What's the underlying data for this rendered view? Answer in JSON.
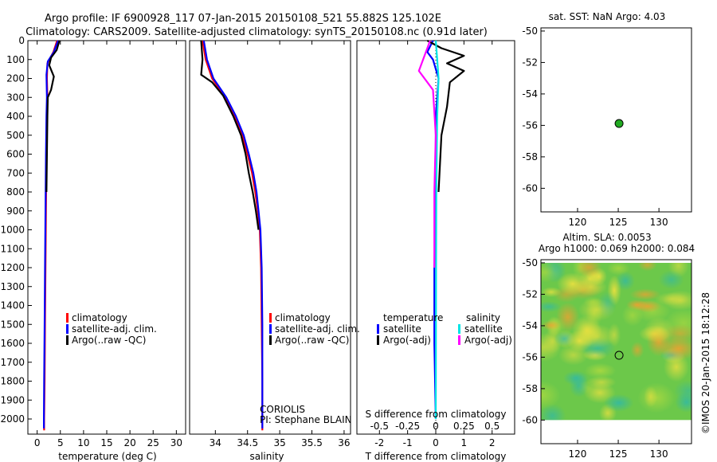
{
  "header": {
    "title_line1": "Argo profile: IF 6900928_117 07-Jan-2015 20150108_521 55.882S 125.102E",
    "title_line2": "Climatology: CARS2009. Satellite-adjusted climatology: synTS_20150108.nc (0.91d later)"
  },
  "colors": {
    "climatology": "#ff0000",
    "satellite": "#0000ff",
    "argo": "#000000",
    "satellite_salinity": "#00e5e5",
    "argo_salinity_diff": "#ff00ff",
    "map_dot": "#22aa22"
  },
  "depth_axis": {
    "ticks": [
      0,
      100,
      200,
      300,
      400,
      500,
      600,
      700,
      800,
      900,
      1000,
      1100,
      1200,
      1300,
      1400,
      1500,
      1600,
      1700,
      1800,
      1900,
      2000
    ]
  },
  "chart_data": [
    {
      "id": "temperature",
      "type": "line",
      "xlabel": "temperature (deg C)",
      "xlim": [
        -2,
        32
      ],
      "ylim": [
        0,
        2080
      ],
      "xticks": [
        0,
        5,
        10,
        15,
        20,
        25,
        30
      ],
      "legend": [
        "climatology",
        "satellite-adj. clim.",
        "Argo(..raw -QC)"
      ],
      "series": [
        {
          "name": "climatology",
          "color": "#ff0000",
          "points": [
            [
              4.3,
              0
            ],
            [
              3.5,
              60
            ],
            [
              2.2,
              120
            ],
            [
              2.1,
              200
            ],
            [
              2.2,
              300
            ],
            [
              2.1,
              400
            ],
            [
              2.0,
              600
            ],
            [
              1.9,
              900
            ],
            [
              1.8,
              1200
            ],
            [
              1.7,
              1500
            ],
            [
              1.6,
              1800
            ],
            [
              1.5,
              2000
            ],
            [
              1.5,
              2060
            ]
          ]
        },
        {
          "name": "satellite-adj. clim.",
          "color": "#0000ff",
          "points": [
            [
              4.5,
              0
            ],
            [
              3.6,
              60
            ],
            [
              2.3,
              110
            ],
            [
              2.0,
              180
            ],
            [
              2.1,
              300
            ],
            [
              2.0,
              400
            ],
            [
              1.9,
              600
            ],
            [
              1.8,
              900
            ],
            [
              1.7,
              1200
            ],
            [
              1.6,
              1500
            ],
            [
              1.5,
              1800
            ],
            [
              1.45,
              2000
            ],
            [
              1.45,
              2050
            ]
          ]
        },
        {
          "name": "Argo(..raw -QC)",
          "color": "#000000",
          "points": [
            [
              4.8,
              0
            ],
            [
              4.2,
              50
            ],
            [
              3.0,
              90
            ],
            [
              2.6,
              130
            ],
            [
              3.6,
              190
            ],
            [
              3.0,
              260
            ],
            [
              2.3,
              300
            ],
            [
              2.2,
              400
            ],
            [
              2.1,
              600
            ],
            [
              2.0,
              800
            ]
          ]
        }
      ]
    },
    {
      "id": "salinity",
      "type": "line",
      "xlabel": "salinity",
      "xlim": [
        33.6,
        36.1
      ],
      "ylim": [
        0,
        2080
      ],
      "xticks": [
        34,
        34.5,
        35,
        35.5,
        36
      ],
      "legend": [
        "climatology",
        "satellite-adj. clim.",
        "Argo(..raw -QC)"
      ],
      "annotation": [
        "CORIOLIS",
        "PI: Stephane BLAIN"
      ],
      "series": [
        {
          "name": "climatology",
          "color": "#ff0000",
          "points": [
            [
              33.8,
              0
            ],
            [
              33.85,
              100
            ],
            [
              33.95,
              200
            ],
            [
              34.15,
              300
            ],
            [
              34.3,
              400
            ],
            [
              34.42,
              500
            ],
            [
              34.5,
              600
            ],
            [
              34.57,
              700
            ],
            [
              34.62,
              800
            ],
            [
              34.66,
              900
            ],
            [
              34.69,
              1000
            ],
            [
              34.71,
              1200
            ],
            [
              34.72,
              1500
            ],
            [
              34.73,
              1800
            ],
            [
              34.73,
              2000
            ],
            [
              34.73,
              2060
            ]
          ]
        },
        {
          "name": "satellite-adj. clim.",
          "color": "#0000ff",
          "points": [
            [
              33.82,
              0
            ],
            [
              33.87,
              100
            ],
            [
              33.97,
              200
            ],
            [
              34.17,
              300
            ],
            [
              34.32,
              400
            ],
            [
              34.44,
              500
            ],
            [
              34.52,
              600
            ],
            [
              34.59,
              700
            ],
            [
              34.64,
              800
            ],
            [
              34.67,
              900
            ],
            [
              34.7,
              1000
            ],
            [
              34.72,
              1200
            ],
            [
              34.73,
              1500
            ],
            [
              34.73,
              1800
            ],
            [
              34.73,
              2000
            ],
            [
              34.73,
              2050
            ]
          ]
        },
        {
          "name": "Argo(..raw -QC)",
          "color": "#000000",
          "points": [
            [
              33.78,
              0
            ],
            [
              33.8,
              100
            ],
            [
              33.78,
              180
            ],
            [
              33.95,
              220
            ],
            [
              34.12,
              290
            ],
            [
              34.28,
              400
            ],
            [
              34.4,
              500
            ],
            [
              34.47,
              600
            ],
            [
              34.52,
              700
            ],
            [
              34.58,
              800
            ],
            [
              34.63,
              900
            ],
            [
              34.67,
              1000
            ]
          ]
        }
      ]
    },
    {
      "id": "difference",
      "type": "line",
      "xlabel": "T difference from climatology",
      "xlabel_top": "S difference from climatology",
      "xlim": [
        -2.8,
        2.8
      ],
      "ylim": [
        0,
        2080
      ],
      "xticks": [
        -2,
        -1,
        0,
        1,
        2
      ],
      "xticks_top": [
        -0.5,
        -0.25,
        0,
        0.25,
        0.5
      ],
      "legend_headers": [
        "temperature",
        "salinity"
      ],
      "legend": [
        "satellite",
        "Argo(-adj)",
        "satellite",
        "Argo(-adj)"
      ],
      "series": [
        {
          "name": "temperature satellite",
          "color": "#0000ff",
          "points": [
            [
              -0.1,
              0
            ],
            [
              -0.3,
              60
            ],
            [
              -0.1,
              100
            ],
            [
              0.1,
              200
            ],
            [
              0.0,
              400
            ],
            [
              0.0,
              800
            ],
            [
              -0.05,
              1200
            ],
            [
              -0.05,
              1600
            ],
            [
              0.0,
              2000
            ]
          ]
        },
        {
          "name": "temperature Argo(-adj)",
          "color": "#000000",
          "points": [
            [
              -0.3,
              0
            ],
            [
              0.2,
              40
            ],
            [
              1.0,
              80
            ],
            [
              0.4,
              120
            ],
            [
              1.0,
              160
            ],
            [
              0.5,
              220
            ],
            [
              0.4,
              350
            ],
            [
              0.2,
              500
            ],
            [
              0.1,
              800
            ]
          ]
        },
        {
          "name": "salinity satellite",
          "color": "#00e5e5",
          "points": [
            [
              0.0,
              0
            ],
            [
              0.05,
              100
            ],
            [
              0.1,
              200
            ],
            [
              0.05,
              400
            ],
            [
              0.02,
              800
            ],
            [
              0.01,
              1200
            ],
            [
              0.0,
              2000
            ]
          ]
        },
        {
          "name": "salinity Argo(-adj)",
          "color": "#ff00ff",
          "points": [
            [
              -0.2,
              0
            ],
            [
              -0.6,
              160
            ],
            [
              -0.1,
              260
            ],
            [
              0.0,
              500
            ],
            [
              -0.05,
              800
            ],
            [
              -0.05,
              1200
            ]
          ]
        }
      ]
    },
    {
      "id": "sst-map",
      "type": "scatter",
      "title": "sat. SST: NaN Argo: 4.03",
      "xlim": [
        115.5,
        134
      ],
      "ylim": [
        -61.5,
        -49.8
      ],
      "xticks": [
        120,
        125,
        130
      ],
      "yticks": [
        -50,
        -52,
        -54,
        -56,
        -58,
        -60
      ],
      "points": [
        [
          125.1,
          -55.88
        ]
      ]
    },
    {
      "id": "sla-map",
      "type": "heatmap",
      "title_line1": "Altim. SLA: 0.0053",
      "title_line2": "Argo h1000: 0.069 h2000: 0.084",
      "xlim": [
        115.5,
        134
      ],
      "ylim": [
        -61.5,
        -49.8
      ],
      "xticks": [
        120,
        125,
        130
      ],
      "yticks": [
        -50,
        -52,
        -54,
        -56,
        -58,
        -60
      ],
      "data_extent": {
        "lon": [
          115.5,
          134
        ],
        "lat": [
          -60,
          -50
        ]
      },
      "points": [
        [
          125.1,
          -55.88
        ]
      ]
    }
  ],
  "footer": {
    "stamp": "©IMOS 20-Jan-2015 18:12:28"
  }
}
